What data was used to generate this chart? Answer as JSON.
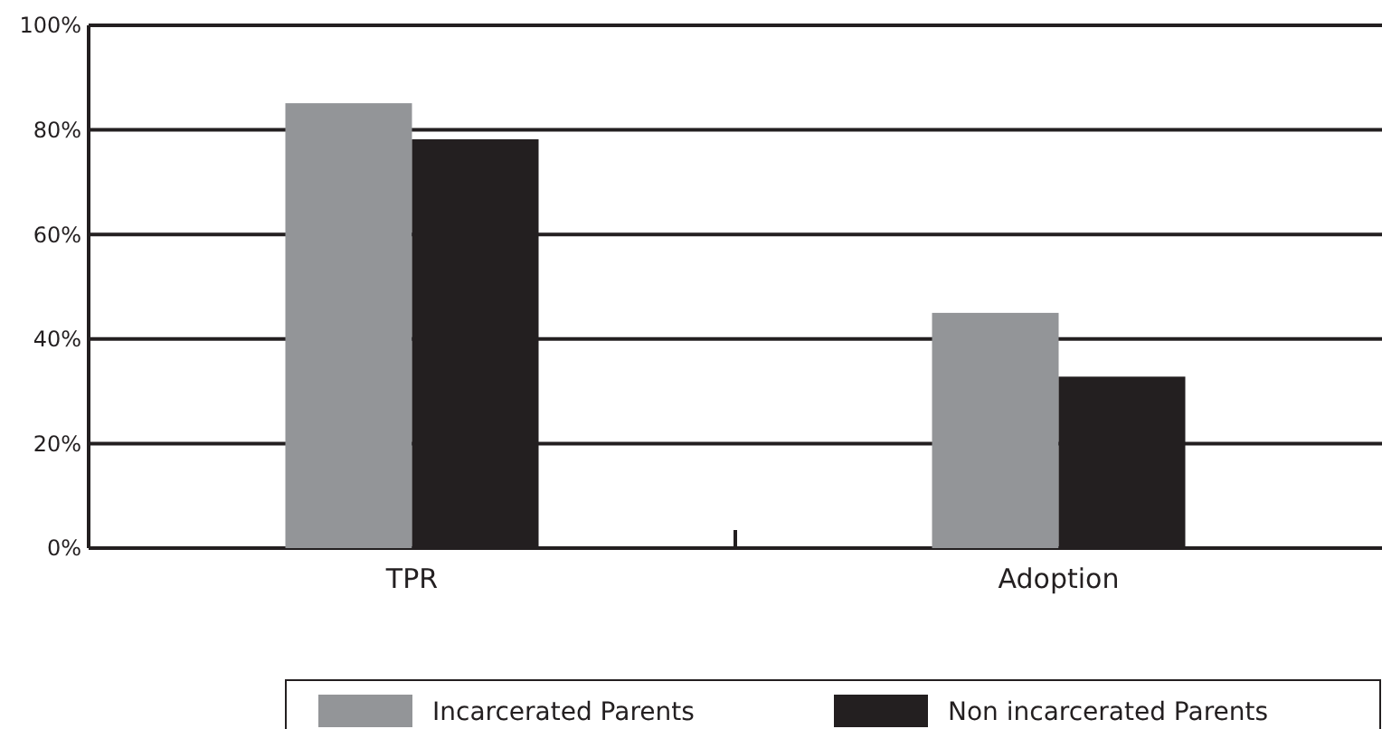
{
  "chart_data": {
    "type": "bar",
    "categories": [
      "TPR",
      "Adoption"
    ],
    "series": [
      {
        "name": "Incarcerated Parents",
        "color": "#939598",
        "values": [
          85.1,
          45
        ]
      },
      {
        "name": "Non incarcerated Parents",
        "color": "#231f20",
        "values": [
          78.2,
          32.8
        ]
      }
    ],
    "ylim": [
      0,
      100
    ],
    "yticks": [
      {
        "value": 0,
        "label": "0%"
      },
      {
        "value": 20,
        "label": "20%"
      },
      {
        "value": 40,
        "label": "40%"
      },
      {
        "value": 60,
        "label": "60%"
      },
      {
        "value": 80,
        "label": "80%"
      },
      {
        "value": 100,
        "label": "100%"
      }
    ],
    "grid": "y",
    "legend": "bottom right"
  }
}
